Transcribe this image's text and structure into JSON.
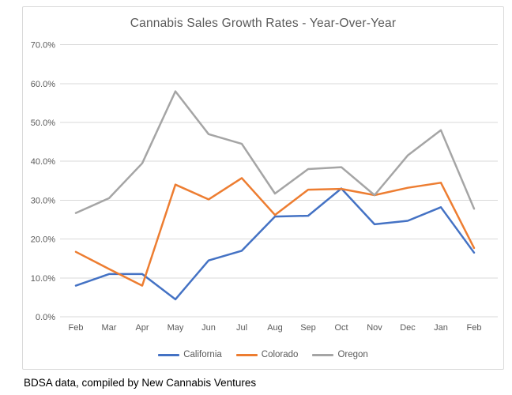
{
  "page": {
    "footer": "BDSA data, compiled by New Cannabis Ventures"
  },
  "chart": {
    "title": "Cannabis Sales Growth Rates - Year-Over-Year"
  },
  "chart_data": {
    "type": "line",
    "title": "Cannabis Sales Growth Rates - Year-Over-Year",
    "categories": [
      "Feb",
      "Mar",
      "Apr",
      "May",
      "Jun",
      "Jul",
      "Aug",
      "Sep",
      "Oct",
      "Nov",
      "Dec",
      "Jan",
      "Feb"
    ],
    "series": [
      {
        "name": "California",
        "color": "#4472C4",
        "values": [
          8.0,
          11.0,
          11.0,
          4.5,
          14.5,
          17.0,
          25.8,
          26.0,
          33.0,
          23.8,
          24.7,
          28.2,
          16.5
        ]
      },
      {
        "name": "Colorado",
        "color": "#ED7D31",
        "values": [
          16.7,
          12.3,
          8.0,
          34.0,
          30.2,
          35.7,
          26.2,
          32.7,
          32.9,
          31.3,
          33.2,
          34.5,
          17.7
        ]
      },
      {
        "name": "Oregon",
        "color": "#A5A5A5",
        "values": [
          26.7,
          30.5,
          39.5,
          58.0,
          47.0,
          44.5,
          31.7,
          38.0,
          38.5,
          31.3,
          41.5,
          48.0,
          27.8
        ]
      }
    ],
    "xlabel": "",
    "ylabel": "",
    "ylim": [
      0,
      70
    ],
    "y_tick_step": 10,
    "y_tick_labels": [
      "0.0%",
      "10.0%",
      "20.0%",
      "30.0%",
      "40.0%",
      "50.0%",
      "60.0%",
      "70.0%"
    ],
    "grid": "horizontal-only",
    "gridline_color": "#d9d9d9",
    "axis_text_color": "#595959",
    "legend_position": "bottom"
  }
}
